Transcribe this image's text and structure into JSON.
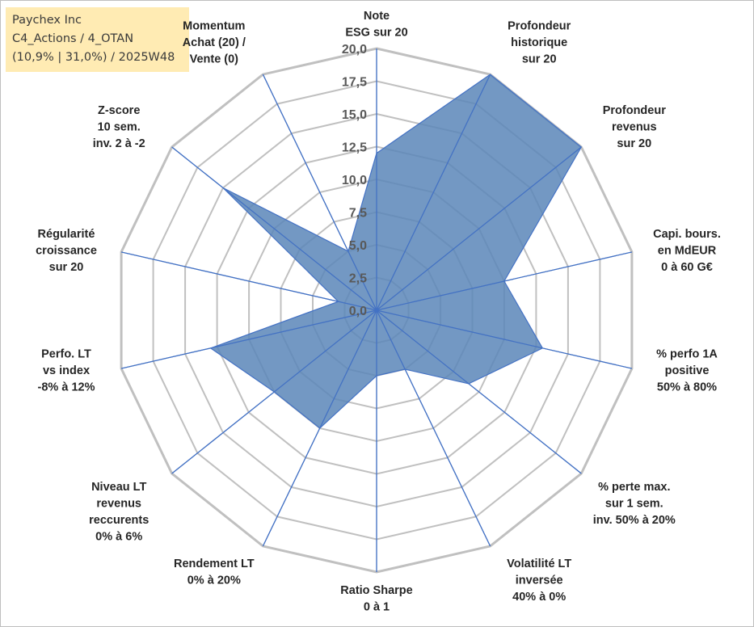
{
  "title_lines": [
    "Paychex Inc",
    "C4_Actions / 4_OTAN",
    "(10,9% | 31,0%) / 2025W48"
  ],
  "chart_data": {
    "type": "radar",
    "rmin": 0,
    "rmax": 20,
    "ticks": [
      "0,0",
      "2,5",
      "5,0",
      "7,5",
      "10,0",
      "12,5",
      "15,0",
      "17,5",
      "20,0"
    ],
    "axes": [
      {
        "label": [
          "Note",
          "ESG sur 20"
        ],
        "value": 12.0
      },
      {
        "label": [
          "Profondeur",
          "historique",
          "sur 20"
        ],
        "value": 20.0
      },
      {
        "label": [
          "Profondeur",
          "revenus",
          "sur 20"
        ],
        "value": 20.0
      },
      {
        "label": [
          "Capi. bours.",
          "en MdEUR",
          "0 à 60 G€"
        ],
        "value": 10.0
      },
      {
        "label": [
          "% perfo 1A",
          "positive",
          "50% à 80%"
        ],
        "value": 13.0
      },
      {
        "label": [
          "% perte max.",
          "sur 1 sem.",
          "inv. 50% à 20%"
        ],
        "value": 9.0
      },
      {
        "label": [
          "Volatilité LT",
          "inversée",
          "40% à 0%"
        ],
        "value": 5.0
      },
      {
        "label": [
          "Ratio Sharpe",
          "0 à 1"
        ],
        "value": 5.0
      },
      {
        "label": [
          "Rendement LT",
          "0% à 20%"
        ],
        "value": 10.0
      },
      {
        "label": [
          "Niveau LT",
          "revenus",
          "reccurents",
          "0% à 6%"
        ],
        "value": 10.0
      },
      {
        "label": [
          "Perfo. LT",
          "vs index",
          "-8% à 12%"
        ],
        "value": 13.0
      },
      {
        "label": [
          "Régularité",
          "croissance",
          "sur 20"
        ],
        "value": 3.0
      },
      {
        "label": [
          "Z-score",
          "10 sem.",
          "inv. 2 à -2"
        ],
        "value": 15.0
      },
      {
        "label": [
          "Momentum",
          "Achat (20) /",
          "Vente (0)"
        ],
        "value": 5.0
      }
    ],
    "colors": {
      "fill": "#5b86b8",
      "stroke": "#4472c4",
      "grid": "#c0c0c0",
      "title_bg": "#ffebb3"
    }
  }
}
